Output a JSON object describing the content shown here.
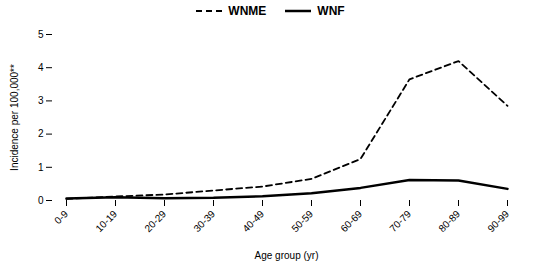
{
  "chart_data": {
    "type": "line",
    "categories": [
      "0-9",
      "10-19",
      "20-29",
      "30-39",
      "40-49",
      "50-59",
      "60-69",
      "70-79",
      "80-89",
      "90-99"
    ],
    "series": [
      {
        "name": "WNME",
        "color": "#000000",
        "line_style": "dashed",
        "values": [
          0.05,
          0.12,
          0.18,
          0.3,
          0.42,
          0.65,
          1.25,
          3.65,
          4.2,
          2.85
        ]
      },
      {
        "name": "WNF",
        "color": "#000000",
        "line_style": "solid",
        "values": [
          0.06,
          0.1,
          0.07,
          0.08,
          0.13,
          0.22,
          0.38,
          0.62,
          0.6,
          0.35
        ]
      }
    ],
    "xlabel": "Age group (yr)",
    "ylabel": "Incidence per 100,000**",
    "ylim": [
      0,
      5
    ],
    "yticks": [
      0,
      1,
      2,
      3,
      4,
      5
    ],
    "grid": false,
    "legend": "upper center"
  }
}
